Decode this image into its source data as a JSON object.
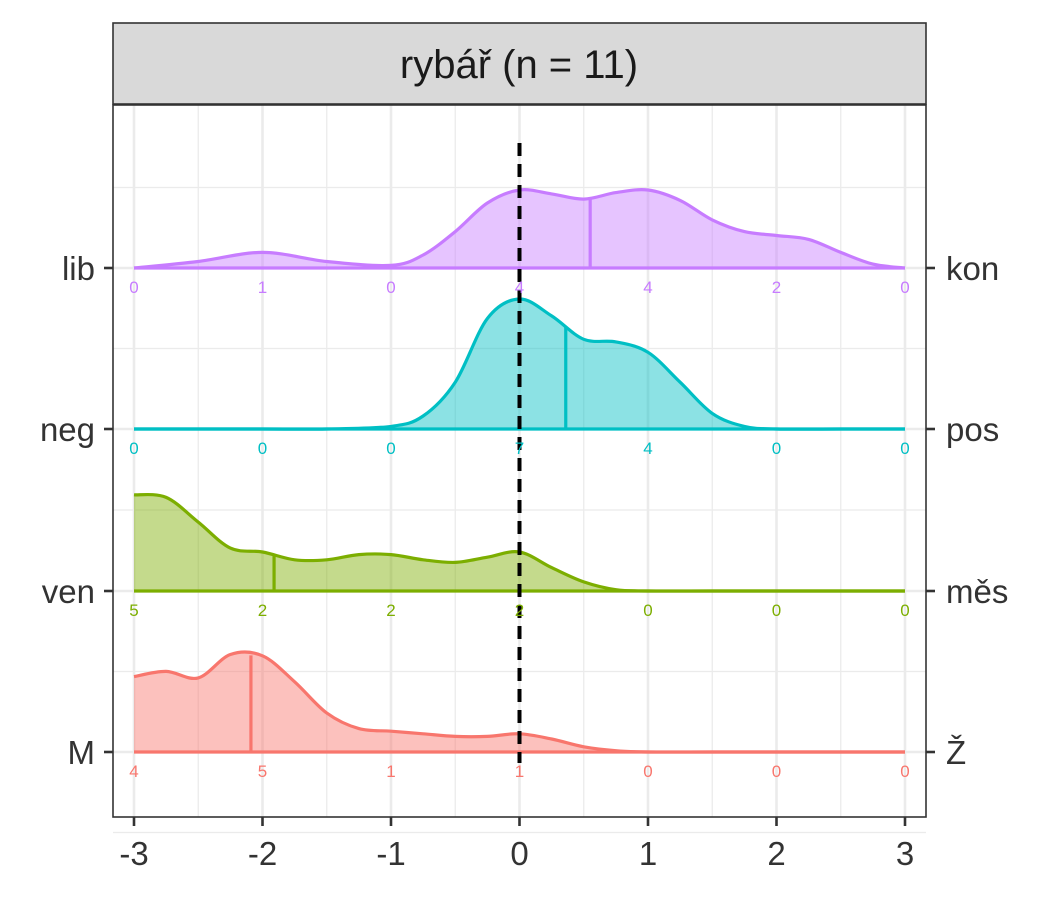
{
  "chart_data": {
    "type": "ridgeline",
    "panel_title": "rybář (n = 11)",
    "x_ticks": [
      "-3",
      "-2",
      "-1",
      "0",
      "1",
      "2",
      "3"
    ],
    "xlim": [
      -3,
      3
    ],
    "bin_positions": [
      -3,
      -2,
      -1,
      0,
      1,
      2,
      3
    ],
    "reference_line_x": 0,
    "grid": true,
    "series": [
      {
        "left_label": "M",
        "right_label": "Ž",
        "color": "#F8766D",
        "counts": [
          "4",
          "5",
          "1",
          "1",
          "0",
          "0",
          "0"
        ],
        "mean": -2.09,
        "density_x": [
          -3,
          -2.75,
          -2.5,
          -2.25,
          -2,
          -1.75,
          -1.5,
          -1.25,
          -1,
          -0.75,
          -0.5,
          -0.25,
          0,
          0.25,
          0.5,
          0.75,
          1,
          1.5,
          2,
          2.5,
          3
        ],
        "density_y": [
          0.58,
          0.62,
          0.57,
          0.75,
          0.74,
          0.54,
          0.3,
          0.18,
          0.16,
          0.14,
          0.12,
          0.12,
          0.14,
          0.1,
          0.04,
          0.01,
          0,
          0,
          0,
          0,
          0
        ]
      },
      {
        "left_label": "ven",
        "right_label": "měs",
        "color": "#7CAE00",
        "counts": [
          "5",
          "2",
          "2",
          "2",
          "0",
          "0",
          "0"
        ],
        "mean": -1.91,
        "density_x": [
          -3,
          -2.75,
          -2.5,
          -2.25,
          -2,
          -1.75,
          -1.5,
          -1.25,
          -1,
          -0.75,
          -0.5,
          -0.25,
          0,
          0.25,
          0.5,
          0.75,
          1,
          1.5,
          2,
          2.5,
          3
        ],
        "density_y": [
          0.74,
          0.72,
          0.53,
          0.33,
          0.3,
          0.24,
          0.24,
          0.28,
          0.28,
          0.24,
          0.22,
          0.26,
          0.3,
          0.18,
          0.07,
          0.01,
          0,
          0,
          0,
          0,
          0
        ]
      },
      {
        "left_label": "neg",
        "right_label": "pos",
        "color": "#00BFC4",
        "counts": [
          "0",
          "0",
          "0",
          "7",
          "4",
          "0",
          "0"
        ],
        "mean": 0.36,
        "density_x": [
          -3,
          -2.5,
          -2,
          -1.5,
          -1,
          -0.75,
          -0.5,
          -0.25,
          0,
          0.25,
          0.5,
          0.75,
          1,
          1.25,
          1.5,
          1.75,
          2,
          2.5,
          3
        ],
        "density_y": [
          0,
          0,
          0,
          0,
          0.02,
          0.1,
          0.36,
          0.85,
          1.0,
          0.87,
          0.69,
          0.67,
          0.59,
          0.36,
          0.12,
          0.02,
          0,
          0,
          0
        ]
      },
      {
        "left_label": "lib",
        "right_label": "kon",
        "color": "#C77CFF",
        "counts": [
          "0",
          "1",
          "0",
          "4",
          "4",
          "2",
          "0"
        ],
        "mean": 0.55,
        "density_x": [
          -3,
          -2.5,
          -2,
          -1.5,
          -1,
          -0.75,
          -0.5,
          -0.25,
          0,
          0.25,
          0.5,
          0.75,
          1,
          1.25,
          1.5,
          1.75,
          2,
          2.25,
          2.5,
          2.75,
          3
        ],
        "density_y": [
          0,
          0.05,
          0.12,
          0.05,
          0.02,
          0.1,
          0.28,
          0.5,
          0.6,
          0.57,
          0.53,
          0.58,
          0.6,
          0.52,
          0.37,
          0.28,
          0.25,
          0.22,
          0.12,
          0.03,
          0
        ]
      }
    ]
  }
}
